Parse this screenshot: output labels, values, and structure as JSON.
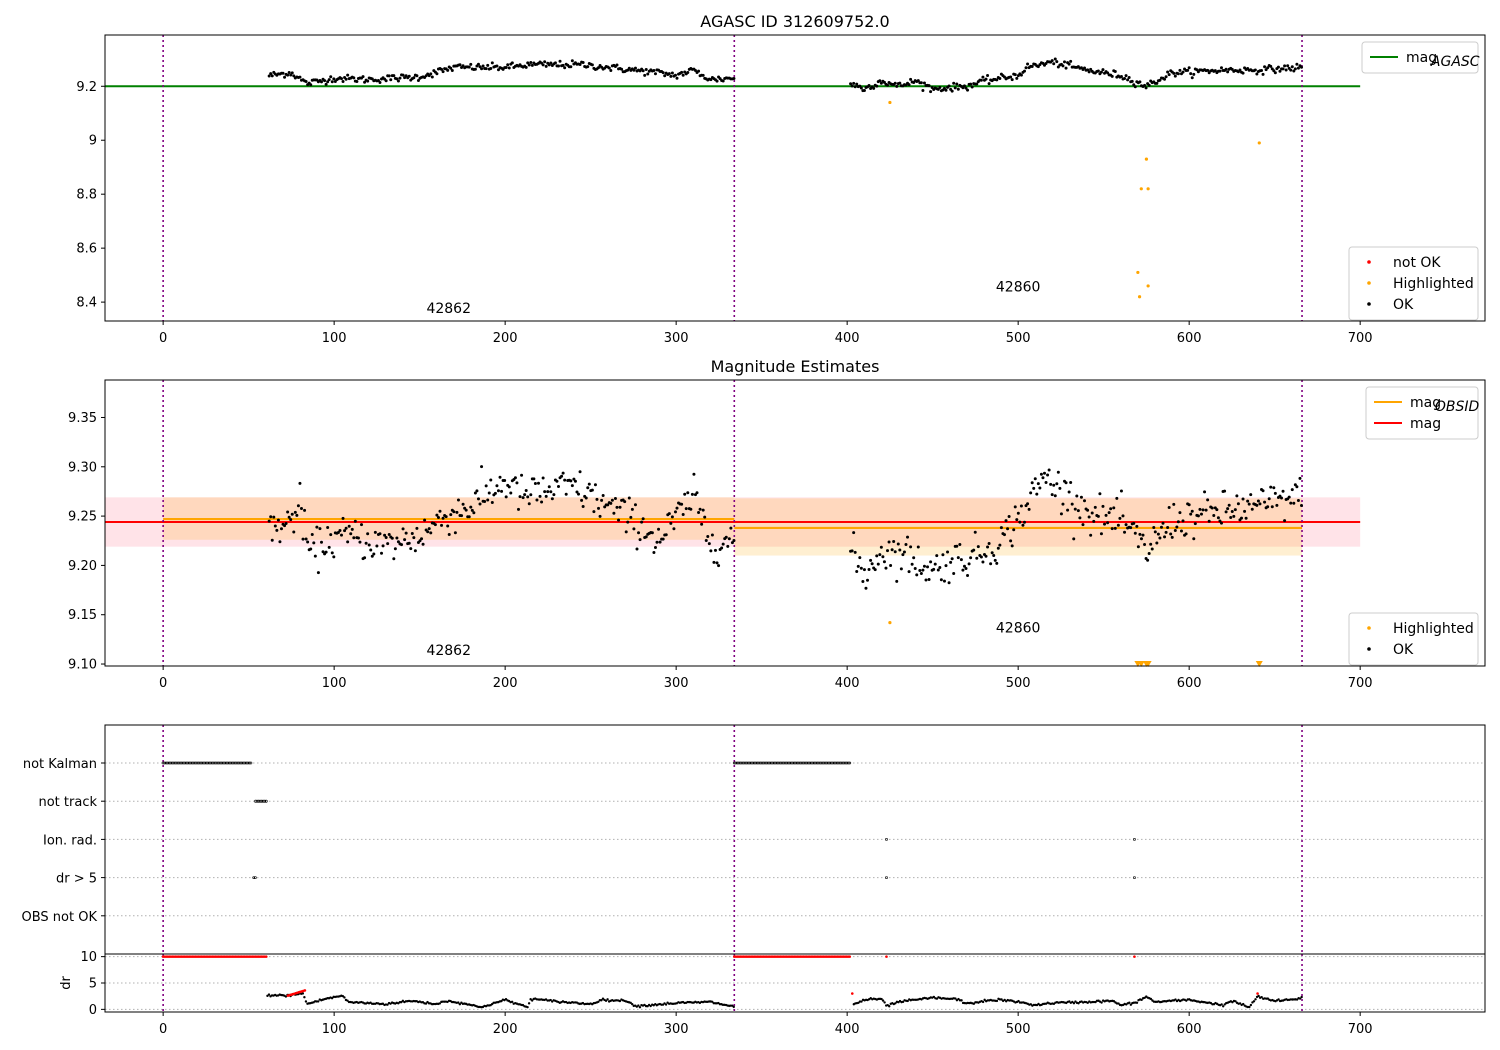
{
  "chart_data": [
    {
      "type": "scatter",
      "title": "AGASC ID 312609752.0",
      "xlabel": "",
      "ylabel": "",
      "xlim": [
        -34,
        773
      ],
      "ylim": [
        8.33,
        9.39
      ],
      "x_ticks": [
        0,
        100,
        200,
        300,
        400,
        500,
        600,
        700
      ],
      "y_ticks": [
        8.4,
        8.6,
        8.8,
        9.0,
        9.2
      ],
      "obsid_boundaries": [
        0,
        334,
        666
      ],
      "obsid_labels": [
        {
          "text": "42862",
          "x": 167,
          "y": 8.36
        },
        {
          "text": "42860",
          "x": 500,
          "y": 8.44
        }
      ],
      "mag_aca_line": {
        "value": 9.2,
        "x_range": [
          -34,
          700
        ],
        "color": "#008000"
      },
      "legend_top": {
        "placement": "top-right",
        "entries": [
          {
            "label": "mag",
            "sub": "AGASC",
            "color": "#008000",
            "kind": "line"
          }
        ]
      },
      "legend_bottom": {
        "placement": "lower-right",
        "entries": [
          {
            "label": "not OK",
            "color": "#ff0000",
            "kind": "marker"
          },
          {
            "label": "Highlighted",
            "color": "#ffa500",
            "kind": "marker"
          },
          {
            "label": "OK",
            "color": "#000000",
            "kind": "marker"
          }
        ]
      },
      "highlighted_points": [
        {
          "x": 425,
          "y": 9.14
        },
        {
          "x": 570,
          "y": 8.51
        },
        {
          "x": 571,
          "y": 8.42
        },
        {
          "x": 572,
          "y": 8.82
        },
        {
          "x": 575,
          "y": 8.93
        },
        {
          "x": 576,
          "y": 8.82
        },
        {
          "x": 576,
          "y": 8.46
        },
        {
          "x": 641,
          "y": 8.99
        }
      ],
      "ok_segments": [
        {
          "x_start": 62,
          "x_end": 334,
          "anchors": [
            [
              62,
              9.24
            ],
            [
              75,
              9.25
            ],
            [
              84,
              9.21
            ],
            [
              100,
              9.23
            ],
            [
              120,
              9.225
            ],
            [
              150,
              9.235
            ],
            [
              170,
              9.27
            ],
            [
              200,
              9.27
            ],
            [
              215,
              9.28
            ],
            [
              245,
              9.28
            ],
            [
              260,
              9.27
            ],
            [
              290,
              9.25
            ],
            [
              300,
              9.24
            ],
            [
              310,
              9.26
            ],
            [
              320,
              9.225
            ],
            [
              334,
              9.23
            ]
          ],
          "noise": 0.012
        },
        {
          "x_start": 402,
          "x_end": 666,
          "anchors": [
            [
              402,
              9.21
            ],
            [
              410,
              9.19
            ],
            [
              420,
              9.22
            ],
            [
              430,
              9.2
            ],
            [
              440,
              9.22
            ],
            [
              450,
              9.19
            ],
            [
              470,
              9.2
            ],
            [
              480,
              9.22
            ],
            [
              500,
              9.24
            ],
            [
              505,
              9.27
            ],
            [
              520,
              9.29
            ],
            [
              540,
              9.26
            ],
            [
              560,
              9.24
            ],
            [
              575,
              9.2
            ],
            [
              590,
              9.25
            ],
            [
              620,
              9.26
            ],
            [
              640,
              9.26
            ],
            [
              666,
              9.27
            ]
          ],
          "noise": 0.012
        }
      ]
    },
    {
      "type": "scatter",
      "title": "Magnitude Estimates",
      "xlabel": "",
      "ylabel": "",
      "xlim": [
        -34,
        773
      ],
      "ylim": [
        9.098,
        9.388
      ],
      "x_ticks": [
        0,
        100,
        200,
        300,
        400,
        500,
        600,
        700
      ],
      "y_ticks": [
        9.1,
        9.15,
        9.2,
        9.25,
        9.3,
        9.35
      ],
      "y_tick_labels": [
        "9.10",
        "9.15",
        "9.20",
        "9.25",
        "9.30",
        "9.35"
      ],
      "obsid_boundaries": [
        0,
        334,
        666
      ],
      "obsid_labels": [
        {
          "text": "42862",
          "x": 167,
          "y": 9.109
        },
        {
          "text": "42860",
          "x": 500,
          "y": 9.132
        }
      ],
      "mag_band": {
        "value": 9.244,
        "low": 9.219,
        "high": 9.269,
        "x_range": [
          -34,
          700
        ],
        "line_color": "#ff0000",
        "band_color": "#ffc0cb"
      },
      "obsid_mags": [
        {
          "x_range": [
            0,
            334
          ],
          "value": 9.247,
          "low": 9.226,
          "high": 9.269,
          "color": "#ffa500"
        },
        {
          "x_range": [
            334,
            666
          ],
          "value": 9.238,
          "low": 9.21,
          "high": 9.268,
          "color": "#ffa500"
        }
      ],
      "legend_top": {
        "placement": "top-right",
        "entries": [
          {
            "label": "mag",
            "sub": "OBSID",
            "color": "#ffa500",
            "kind": "line"
          },
          {
            "label": "mag",
            "sub": "",
            "color": "#ff0000",
            "kind": "line"
          }
        ]
      },
      "legend_bottom": {
        "placement": "lower-right",
        "entries": [
          {
            "label": "Highlighted",
            "color": "#ffa500",
            "kind": "marker"
          },
          {
            "label": "OK",
            "color": "#000000",
            "kind": "marker"
          }
        ]
      },
      "highlighted_points": [
        {
          "x": 425,
          "y": 9.142
        }
      ],
      "clipped_triangles": [
        {
          "x": 570
        },
        {
          "x": 572
        },
        {
          "x": 575
        },
        {
          "x": 576
        },
        {
          "x": 641
        }
      ],
      "ok_segments": [
        {
          "x_start": 62,
          "x_end": 334,
          "anchors": [
            [
              62,
              9.24
            ],
            [
              72,
              9.24
            ],
            [
              80,
              9.26
            ],
            [
              86,
              9.21
            ],
            [
              95,
              9.225
            ],
            [
              110,
              9.23
            ],
            [
              130,
              9.22
            ],
            [
              140,
              9.225
            ],
            [
              150,
              9.23
            ],
            [
              165,
              9.25
            ],
            [
              180,
              9.26
            ],
            [
              200,
              9.285
            ],
            [
              210,
              9.27
            ],
            [
              240,
              9.28
            ],
            [
              260,
              9.26
            ],
            [
              280,
              9.24
            ],
            [
              290,
              9.225
            ],
            [
              310,
              9.27
            ],
            [
              320,
              9.225
            ],
            [
              334,
              9.225
            ]
          ],
          "noise": 0.018
        },
        {
          "x_start": 402,
          "x_end": 666,
          "anchors": [
            [
              402,
              9.215
            ],
            [
              410,
              9.19
            ],
            [
              420,
              9.215
            ],
            [
              435,
              9.21
            ],
            [
              450,
              9.195
            ],
            [
              460,
              9.205
            ],
            [
              475,
              9.21
            ],
            [
              490,
              9.225
            ],
            [
              505,
              9.26
            ],
            [
              515,
              9.29
            ],
            [
              530,
              9.27
            ],
            [
              545,
              9.25
            ],
            [
              560,
              9.245
            ],
            [
              575,
              9.215
            ],
            [
              590,
              9.245
            ],
            [
              620,
              9.255
            ],
            [
              640,
              9.26
            ],
            [
              666,
              9.27
            ]
          ],
          "noise": 0.018
        }
      ]
    },
    {
      "type": "scatter",
      "title": "",
      "xlabel": "",
      "ylabel": "",
      "xlim": [
        -34,
        773
      ],
      "categories": [
        "not Kalman",
        "not track",
        "Ion. rad.",
        "dr > 5",
        "OBS not OK"
      ],
      "flag_segments": {
        "not Kalman": [
          [
            0,
            52
          ],
          [
            334,
            402
          ]
        ],
        "not track": [
          [
            54,
            61
          ]
        ],
        "Ion. rad.": [
          [
            423,
            423
          ],
          [
            568,
            568
          ]
        ],
        "dr > 5": [
          [
            53,
            54
          ],
          [
            423,
            423
          ],
          [
            568,
            568
          ]
        ],
        "OBS not OK": []
      },
      "obsid_boundaries": [
        0,
        334,
        666
      ]
    },
    {
      "type": "scatter",
      "title": "",
      "xlabel": "",
      "ylabel": "dr",
      "xlim": [
        -34,
        773
      ],
      "ylim": [
        -0.5,
        10.5
      ],
      "x_ticks": [
        0,
        100,
        200,
        300,
        400,
        500,
        600,
        700
      ],
      "y_ticks": [
        0,
        5,
        10
      ],
      "obsid_boundaries": [
        0,
        334,
        666
      ],
      "not_ok_value": 10,
      "not_ok_ranges": [
        [
          0,
          61
        ],
        [
          334,
          402
        ]
      ],
      "not_ok_points": [
        {
          "x": 423,
          "y": 10
        },
        {
          "x": 568,
          "y": 10
        },
        {
          "x": 403,
          "y": 3
        },
        {
          "x": 640,
          "y": 3
        }
      ],
      "not_ok_rise": {
        "x_start": 73,
        "x_end": 83,
        "y_start": 2.6,
        "y_end": 3.6
      },
      "ok_curve": {
        "x_start": 61,
        "x_end": 666,
        "anchors": [
          [
            61,
            2.7
          ],
          [
            72,
            2.6
          ],
          [
            82,
            3.0
          ],
          [
            84,
            1.0
          ],
          [
            95,
            2.0
          ],
          [
            105,
            2.6
          ],
          [
            108,
            1.4
          ],
          [
            130,
            1.0
          ],
          [
            145,
            1.6
          ],
          [
            150,
            1.4
          ],
          [
            160,
            1.0
          ],
          [
            165,
            1.6
          ],
          [
            175,
            1.2
          ],
          [
            185,
            0.4
          ],
          [
            190,
            0.8
          ],
          [
            200,
            1.8
          ],
          [
            213,
            0.4
          ],
          [
            215,
            2.0
          ],
          [
            230,
            1.5
          ],
          [
            250,
            1.0
          ],
          [
            256,
            1.8
          ],
          [
            272,
            1.6
          ],
          [
            276,
            0.6
          ],
          [
            300,
            1.2
          ],
          [
            320,
            1.4
          ],
          [
            334,
            0.5
          ],
          [
            403,
            0.8
          ],
          [
            410,
            1.8
          ],
          [
            420,
            2.0
          ],
          [
            423,
            0.6
          ],
          [
            430,
            1.4
          ],
          [
            440,
            1.8
          ],
          [
            450,
            2.2
          ],
          [
            465,
            1.9
          ],
          [
            470,
            1.0
          ],
          [
            480,
            1.6
          ],
          [
            490,
            1.8
          ],
          [
            500,
            1.4
          ],
          [
            510,
            0.8
          ],
          [
            520,
            1.2
          ],
          [
            540,
            1.4
          ],
          [
            555,
            1.6
          ],
          [
            560,
            0.8
          ],
          [
            568,
            1.2
          ],
          [
            575,
            2.4
          ],
          [
            580,
            1.4
          ],
          [
            600,
            1.8
          ],
          [
            620,
            0.8
          ],
          [
            625,
            1.6
          ],
          [
            635,
            0.4
          ],
          [
            640,
            2.4
          ],
          [
            650,
            1.6
          ],
          [
            660,
            1.8
          ],
          [
            666,
            2.2
          ]
        ],
        "noise": 0.25
      }
    }
  ]
}
